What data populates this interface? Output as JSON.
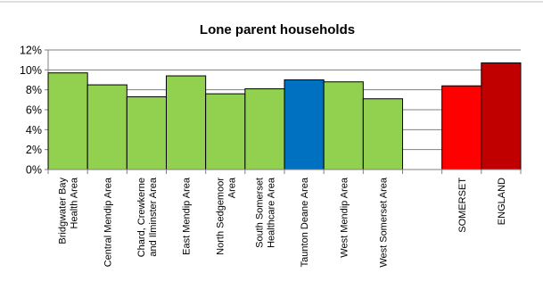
{
  "chart_data": {
    "type": "bar",
    "title": "Lone parent households",
    "xlabel": "",
    "ylabel": "",
    "ylim": [
      0,
      12
    ],
    "yticks": [
      "0%",
      "2%",
      "4%",
      "6%",
      "8%",
      "10%",
      "12%"
    ],
    "grid": true,
    "categories": [
      [
        "Bridgwater Bay",
        "Health Area"
      ],
      [
        "Central Mendip Area"
      ],
      [
        "Chard, Crewkerne",
        "and Ilminster Area"
      ],
      [
        "East Mendip Area"
      ],
      [
        "North Sedgemoor",
        "Area"
      ],
      [
        "South Somerset",
        "Healthcare Area"
      ],
      [
        "Taunton Deane Area"
      ],
      [
        "West Mendip Area"
      ],
      [
        "West Somerset Area"
      ],
      [
        "SOMERSET"
      ],
      [
        "ENGLAND"
      ]
    ],
    "values": [
      9.7,
      8.5,
      7.3,
      9.4,
      7.6,
      8.1,
      9.0,
      8.8,
      7.1,
      8.4,
      10.7
    ],
    "colors": [
      "#92d050",
      "#92d050",
      "#92d050",
      "#92d050",
      "#92d050",
      "#92d050",
      "#0070c0",
      "#92d050",
      "#92d050",
      "#ff0000",
      "#c00000"
    ]
  }
}
